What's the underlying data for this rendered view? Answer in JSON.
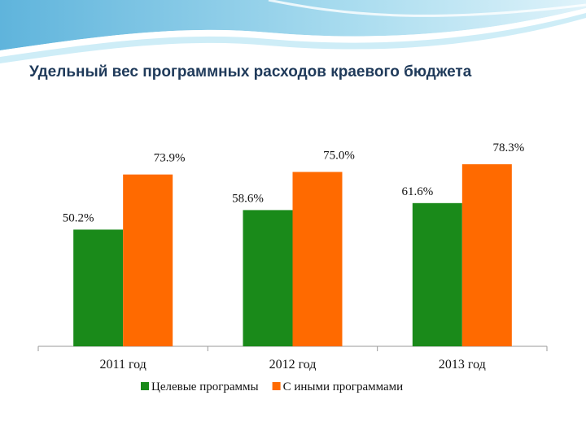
{
  "slide": {
    "title": "Удельный вес программных расходов краевого бюджета"
  },
  "chart_data": {
    "type": "bar",
    "title": "",
    "xlabel": "",
    "ylabel": "",
    "ylim": [
      0,
      100
    ],
    "grid": false,
    "legend_position": "bottom",
    "categories": [
      "2011 год",
      "2012 год",
      "2013 год"
    ],
    "series": [
      {
        "name": "Целевые программы",
        "color": "#1a8a1a",
        "values": [
          50.2,
          58.6,
          61.6
        ],
        "labels": [
          "50.2%",
          "58.6%",
          "61.6%"
        ]
      },
      {
        "name": "С иными программами",
        "color": "#ff6a00",
        "values": [
          73.9,
          75.0,
          78.3
        ],
        "labels": [
          "73.9%",
          "75.0%",
          "78.3%"
        ]
      }
    ]
  }
}
